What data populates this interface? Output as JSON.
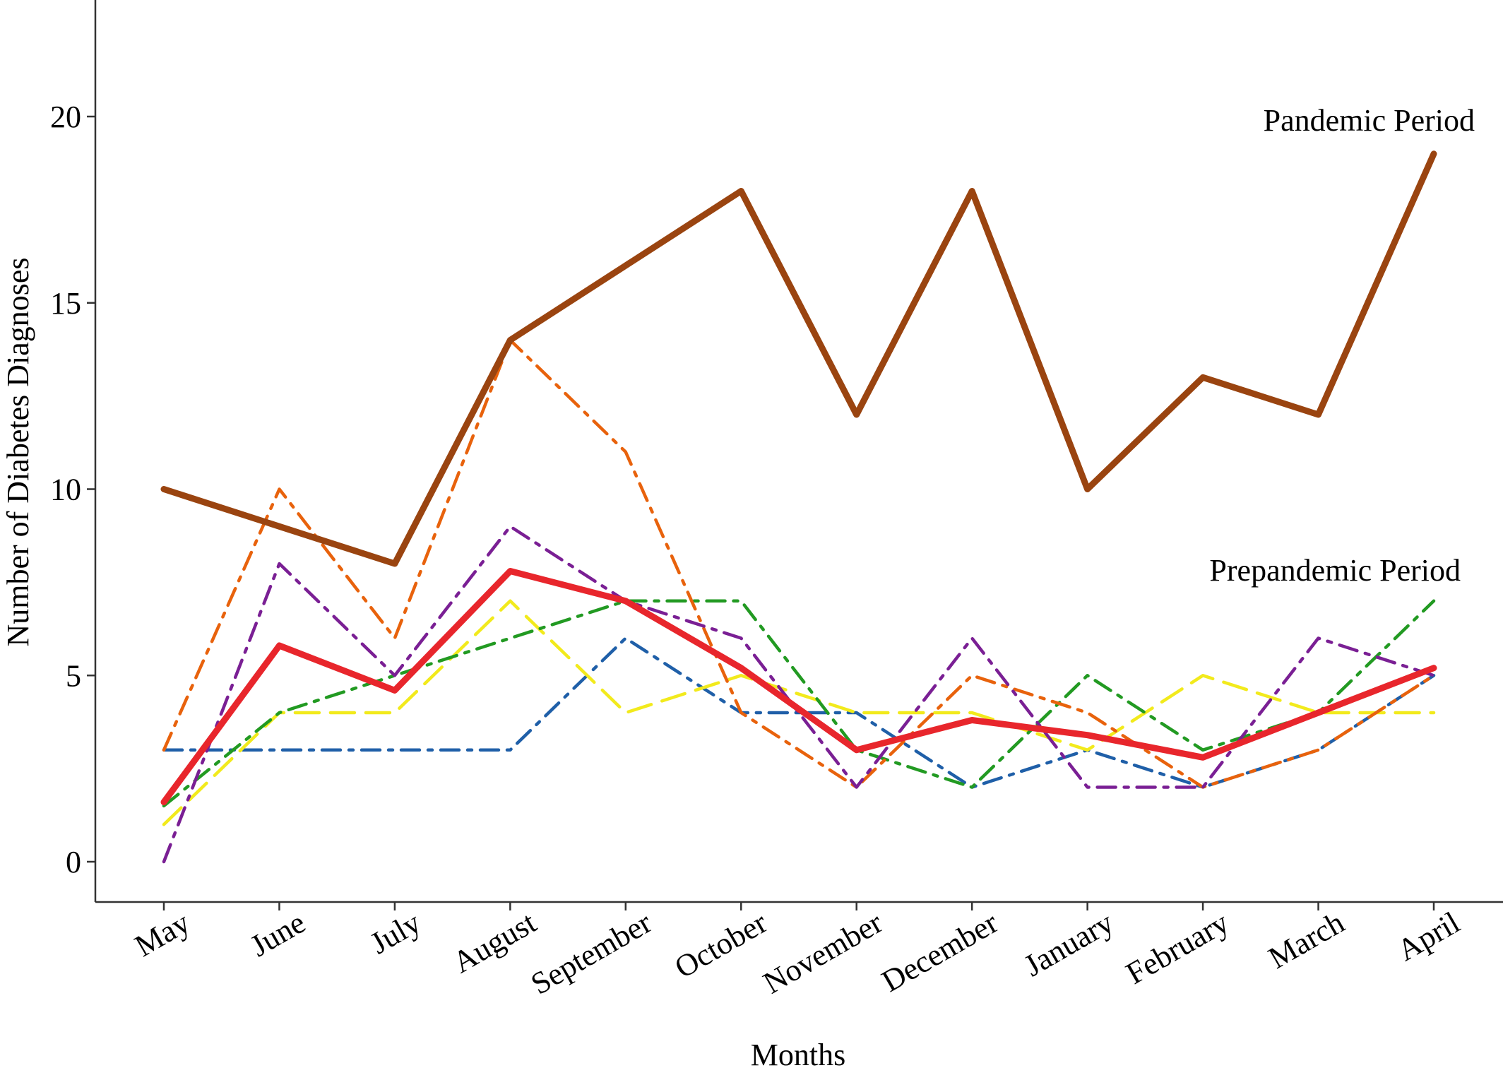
{
  "chart_data": {
    "type": "line",
    "title": "",
    "xlabel": "Months",
    "ylabel": "Number of Diabetes Diagnoses",
    "categories": [
      "May",
      "June",
      "July",
      "August",
      "September",
      "October",
      "November",
      "December",
      "January",
      "February",
      "March",
      "April"
    ],
    "ylim": [
      -1,
      23
    ],
    "yticks": [
      0,
      5,
      10,
      15,
      20
    ],
    "grid": false,
    "legend": "none",
    "annotations": [
      {
        "text": "Pandemic Period",
        "series_ref": "pandemic"
      },
      {
        "text": "Prepandemic Period",
        "series_ref": "prepandemic-mean"
      }
    ],
    "series": [
      {
        "id": "prepandemic-blue",
        "color": "#1f5fa8",
        "dash": "dashdot",
        "values": [
          3,
          3,
          3,
          3,
          6,
          4,
          4,
          2,
          3,
          2,
          3,
          5
        ]
      },
      {
        "id": "prepandemic-yellow",
        "color": "#f2ea1c",
        "dash": "longdash",
        "values": [
          1,
          4,
          4,
          7,
          4,
          5,
          4,
          4,
          3,
          5,
          4,
          4
        ]
      },
      {
        "id": "prepandemic-green",
        "color": "#229a22",
        "dash": "dashdot",
        "values": [
          1.5,
          4,
          5,
          6,
          7,
          7,
          3,
          2,
          5,
          3,
          4,
          7
        ]
      },
      {
        "id": "prepandemic-orange",
        "color": "#e8620c",
        "dash": "dashdot",
        "values": [
          3,
          10,
          6,
          14,
          11,
          4,
          2,
          5,
          4,
          2,
          3,
          5
        ]
      },
      {
        "id": "prepandemic-purple",
        "color": "#7a1f94",
        "dash": "dashdot",
        "values": [
          0,
          8,
          5,
          9,
          7,
          6,
          2,
          6,
          2,
          2,
          6,
          5
        ]
      },
      {
        "id": "prepandemic-mean",
        "color": "#e8262c",
        "dash": "solid",
        "values": [
          1.6,
          5.8,
          4.6,
          7.8,
          7,
          5.2,
          3,
          3.8,
          3.4,
          2.8,
          4,
          5.2
        ]
      },
      {
        "id": "pandemic",
        "color": "#9a4410",
        "dash": "solid",
        "values": [
          10,
          9,
          8,
          14,
          16,
          18,
          12,
          18,
          10,
          13,
          12,
          19
        ]
      }
    ]
  }
}
